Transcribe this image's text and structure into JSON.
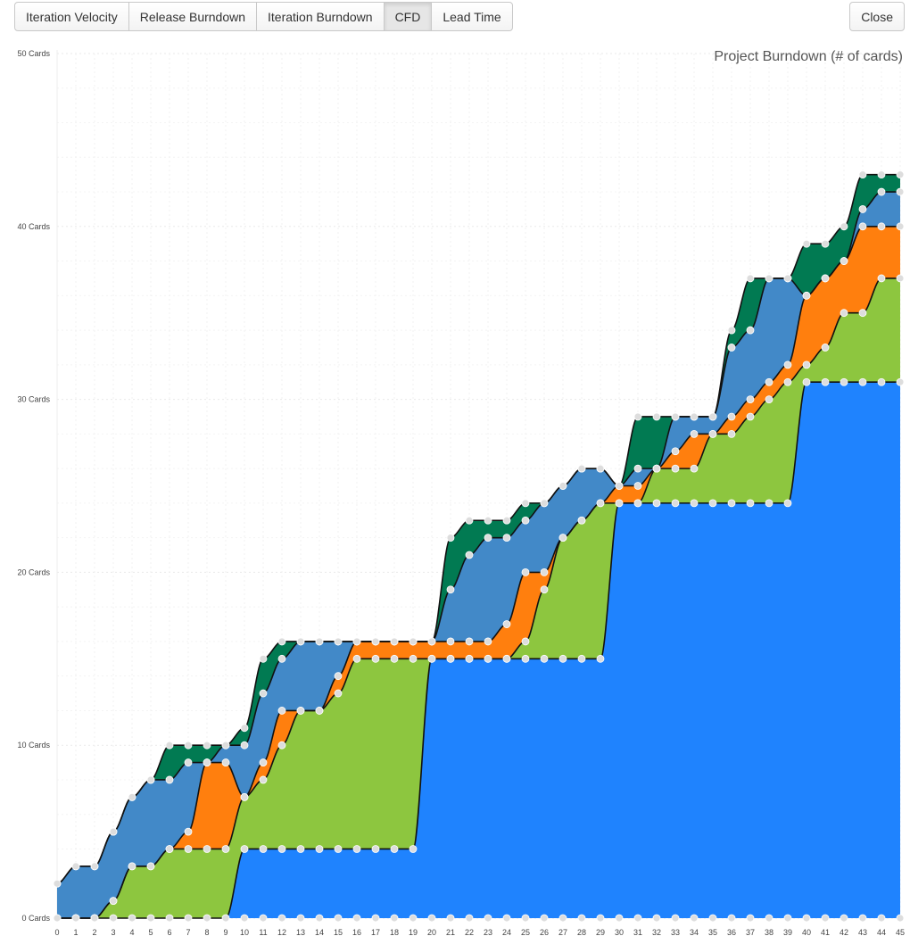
{
  "toolbar": {
    "tabs": [
      {
        "label": "Iteration Velocity",
        "active": false
      },
      {
        "label": "Release Burndown",
        "active": false
      },
      {
        "label": "Iteration Burndown",
        "active": false
      },
      {
        "label": "CFD",
        "active": true
      },
      {
        "label": "Lead Time",
        "active": false
      }
    ],
    "close_label": "Close"
  },
  "chart_data": {
    "type": "area",
    "stacked": true,
    "title": "Project Burndown (# of cards)",
    "xlabel": "",
    "ylabel": "",
    "x": [
      0,
      1,
      2,
      3,
      4,
      5,
      6,
      7,
      8,
      9,
      10,
      11,
      12,
      13,
      14,
      15,
      16,
      17,
      18,
      19,
      20,
      21,
      22,
      23,
      24,
      25,
      26,
      27,
      28,
      29,
      30,
      31,
      32,
      33,
      34,
      35,
      36,
      37,
      38,
      39,
      40,
      41,
      42,
      43,
      44,
      45
    ],
    "ylim": [
      0,
      50
    ],
    "yticks": [
      0,
      10,
      20,
      30,
      40,
      50
    ],
    "ytick_labels": [
      "0 Cards",
      "10 Cards",
      "20 Cards",
      "30 Cards",
      "40 Cards",
      "50 Cards"
    ],
    "grid": true,
    "series": [
      {
        "color": "#1f83fe",
        "values": [
          0,
          0,
          0,
          0,
          0,
          0,
          0,
          0,
          0,
          0,
          4,
          4,
          4,
          4,
          4,
          4,
          4,
          4,
          4,
          4,
          15,
          15,
          15,
          15,
          15,
          15,
          15,
          15,
          15,
          15,
          24,
          24,
          24,
          24,
          24,
          24,
          24,
          24,
          24,
          24,
          31,
          31,
          31,
          31,
          31,
          31
        ]
      },
      {
        "color": "#8dc63f",
        "values": [
          0,
          0,
          0,
          1,
          3,
          3,
          4,
          4,
          4,
          4,
          3,
          4,
          6,
          8,
          8,
          9,
          11,
          11,
          11,
          11,
          0,
          0,
          0,
          0,
          0,
          1,
          4,
          7,
          8,
          9,
          0,
          0,
          2,
          2,
          2,
          4,
          4,
          5,
          6,
          7,
          1,
          2,
          4,
          4,
          6,
          6
        ]
      },
      {
        "color": "#ff7f0e",
        "values": [
          0,
          0,
          0,
          0,
          0,
          0,
          0,
          1,
          5,
          5,
          0,
          1,
          2,
          0,
          0,
          1,
          1,
          1,
          1,
          1,
          1,
          1,
          1,
          1,
          2,
          4,
          1,
          0,
          0,
          0,
          1,
          1,
          0,
          1,
          2,
          0,
          1,
          1,
          1,
          1,
          4,
          4,
          3,
          5,
          3,
          3
        ]
      },
      {
        "color": "#4289c8",
        "values": [
          2,
          3,
          3,
          4,
          4,
          5,
          4,
          4,
          0,
          1,
          3,
          4,
          3,
          4,
          4,
          2,
          0,
          0,
          0,
          0,
          0,
          3,
          5,
          6,
          5,
          3,
          4,
          3,
          3,
          2,
          0,
          1,
          0,
          2,
          1,
          1,
          4,
          4,
          6,
          5,
          0,
          0,
          0,
          1,
          2,
          2
        ]
      },
      {
        "color": "#017a52",
        "values": [
          0,
          0,
          0,
          0,
          0,
          0,
          2,
          1,
          1,
          0,
          1,
          2,
          1,
          0,
          0,
          0,
          0,
          0,
          0,
          0,
          0,
          3,
          2,
          1,
          1,
          1,
          0,
          0,
          0,
          0,
          0,
          3,
          3,
          0,
          0,
          0,
          1,
          3,
          0,
          0,
          3,
          2,
          2,
          2,
          1,
          1
        ]
      }
    ]
  }
}
